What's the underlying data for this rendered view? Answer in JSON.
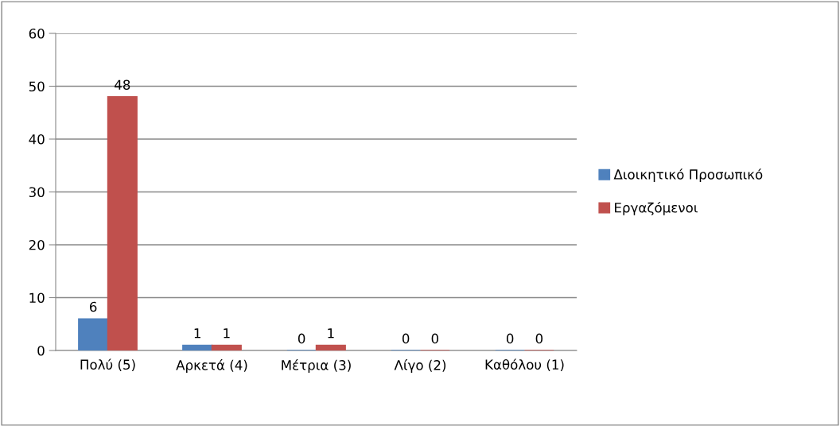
{
  "chart_data": {
    "type": "bar",
    "categories": [
      "Πολύ (5)",
      "Αρκετά (4)",
      "Μέτρια (3)",
      "Λίγο (2)",
      "Καθόλου (1)"
    ],
    "series": [
      {
        "name": "Διοικητικό Προσωπικό",
        "color": "#4f81bd",
        "values": [
          6,
          1,
          0,
          0,
          0
        ]
      },
      {
        "name": "Εργαζόμενοι",
        "color": "#c0504d",
        "values": [
          48,
          1,
          1,
          0,
          0
        ]
      }
    ],
    "ylim": [
      0,
      60
    ],
    "yticks": [
      0,
      10,
      20,
      30,
      40,
      50,
      60
    ],
    "grid": "y",
    "legend": "right",
    "data_labels": true
  }
}
